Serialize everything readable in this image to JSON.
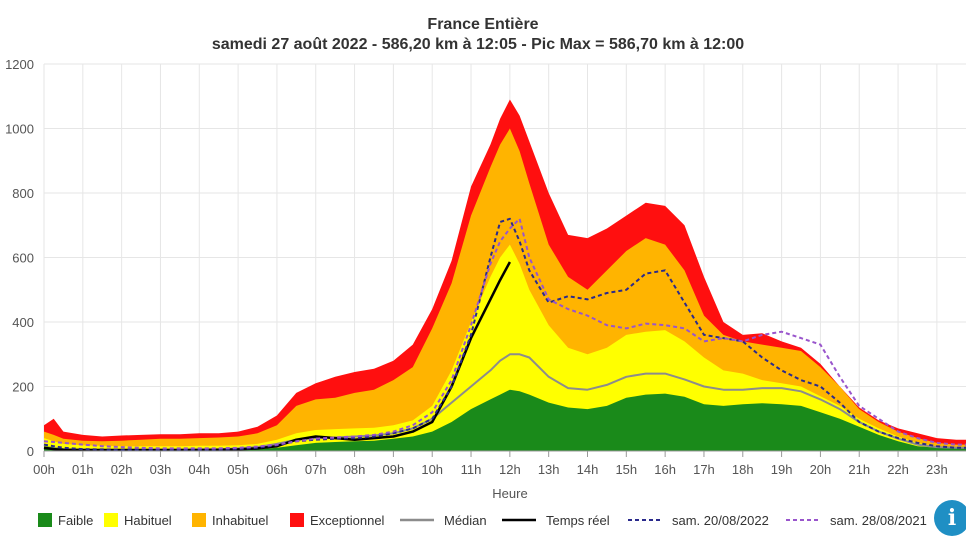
{
  "chart_data": {
    "type": "area",
    "title": "France Entière",
    "subtitle": "samedi 27 août 2022 - 586,20 km à 12:05 - Pic Max = 586,70 km à 12:00",
    "xlabel": "Heure",
    "ylabel": "",
    "xlim": [
      0,
      23.75
    ],
    "ylim": [
      0,
      1200
    ],
    "yticks": [
      0,
      200,
      400,
      600,
      800,
      1000,
      1200
    ],
    "xticks": [
      "00h",
      "01h",
      "02h",
      "03h",
      "04h",
      "05h",
      "06h",
      "07h",
      "08h",
      "09h",
      "10h",
      "11h",
      "12h",
      "13h",
      "14h",
      "15h",
      "16h",
      "17h",
      "18h",
      "19h",
      "20h",
      "21h",
      "22h",
      "23h"
    ],
    "x": [
      0,
      0.25,
      0.5,
      1,
      1.5,
      2,
      2.5,
      3,
      3.5,
      4,
      4.5,
      5,
      5.5,
      6,
      6.5,
      7,
      7.5,
      8,
      8.5,
      9,
      9.5,
      10,
      10.5,
      11,
      11.5,
      11.75,
      12,
      12.25,
      12.5,
      13,
      13.5,
      14,
      14.5,
      15,
      15.5,
      16,
      16.5,
      17,
      17.5,
      18,
      18.5,
      19,
      19.5,
      20,
      20.5,
      21,
      21.5,
      22,
      22.5,
      23,
      23.5,
      23.75
    ],
    "bands": [
      {
        "name": "Faible",
        "color": "#1a8a1a",
        "values": [
          15,
          12,
          8,
          5,
          4,
          3,
          3,
          3,
          3,
          3,
          3,
          3,
          5,
          10,
          18,
          25,
          28,
          30,
          32,
          38,
          45,
          60,
          90,
          130,
          160,
          175,
          190,
          185,
          175,
          150,
          135,
          130,
          140,
          165,
          175,
          178,
          168,
          145,
          140,
          145,
          148,
          145,
          140,
          120,
          100,
          75,
          50,
          30,
          15,
          10,
          8,
          8
        ]
      },
      {
        "name": "Habituel",
        "color": "#ffff00",
        "values": [
          40,
          30,
          22,
          18,
          16,
          15,
          15,
          15,
          15,
          16,
          16,
          18,
          22,
          35,
          55,
          65,
          68,
          70,
          72,
          80,
          95,
          140,
          250,
          400,
          540,
          600,
          640,
          580,
          500,
          390,
          320,
          300,
          320,
          360,
          370,
          375,
          340,
          290,
          250,
          240,
          220,
          210,
          200,
          170,
          140,
          100,
          70,
          45,
          25,
          15,
          12,
          12
        ]
      },
      {
        "name": "Inhabituel",
        "color": "#ffb400",
        "values": [
          60,
          50,
          38,
          32,
          30,
          32,
          35,
          38,
          38,
          40,
          42,
          45,
          55,
          80,
          140,
          160,
          165,
          180,
          190,
          220,
          260,
          380,
          520,
          730,
          880,
          950,
          1000,
          930,
          830,
          640,
          540,
          500,
          560,
          620,
          660,
          640,
          560,
          420,
          360,
          340,
          330,
          320,
          310,
          260,
          200,
          130,
          90,
          60,
          40,
          25,
          20,
          20
        ]
      },
      {
        "name": "Exceptionnel",
        "color": "#ff0f0f",
        "values": [
          80,
          100,
          60,
          50,
          45,
          48,
          50,
          52,
          52,
          55,
          55,
          60,
          75,
          110,
          180,
          210,
          230,
          245,
          255,
          280,
          330,
          440,
          590,
          820,
          950,
          1030,
          1090,
          1040,
          960,
          800,
          670,
          660,
          690,
          730,
          770,
          760,
          700,
          540,
          400,
          360,
          365,
          340,
          320,
          270,
          200,
          135,
          95,
          70,
          55,
          40,
          35,
          35
        ]
      }
    ],
    "series": [
      {
        "name": "Médian",
        "color": "#8c8c8c",
        "dash": "solid",
        "values": [
          10,
          8,
          5,
          4,
          3,
          3,
          3,
          4,
          4,
          5,
          5,
          8,
          12,
          22,
          35,
          40,
          42,
          45,
          48,
          55,
          70,
          100,
          150,
          200,
          250,
          280,
          300,
          300,
          290,
          230,
          195,
          190,
          205,
          230,
          240,
          240,
          222,
          200,
          190,
          190,
          195,
          195,
          185,
          160,
          130,
          90,
          60,
          38,
          20,
          12,
          10,
          10
        ]
      },
      {
        "name": "Temps réel",
        "color": "#000000",
        "dash": "solid",
        "values": [
          10,
          6,
          4,
          3,
          3,
          3,
          3,
          3,
          3,
          3,
          4,
          5,
          8,
          15,
          35,
          45,
          40,
          35,
          40,
          45,
          60,
          90,
          200,
          350,
          470,
          530,
          586,
          null,
          null,
          null,
          null,
          null,
          null,
          null,
          null,
          null,
          null,
          null,
          null,
          null,
          null,
          null,
          null,
          null,
          null,
          null,
          null,
          null,
          null,
          null,
          null,
          null
        ]
      },
      {
        "name": "sam. 20/08/2022",
        "color": "#2a2a8c",
        "dash": "dashed",
        "values": [
          20,
          15,
          10,
          6,
          5,
          4,
          4,
          4,
          4,
          4,
          5,
          6,
          10,
          18,
          30,
          35,
          38,
          40,
          45,
          55,
          70,
          100,
          200,
          360,
          600,
          710,
          720,
          650,
          560,
          460,
          480,
          470,
          490,
          500,
          550,
          560,
          460,
          360,
          350,
          340,
          290,
          250,
          220,
          200,
          150,
          90,
          60,
          40,
          25,
          15,
          10,
          10
        ]
      },
      {
        "name": "sam. 28/08/2021",
        "color": "#9955cc",
        "dash": "dashed",
        "values": [
          30,
          28,
          25,
          20,
          15,
          12,
          10,
          8,
          8,
          8,
          8,
          10,
          14,
          20,
          30,
          38,
          42,
          45,
          50,
          60,
          80,
          120,
          220,
          390,
          580,
          650,
          690,
          720,
          600,
          470,
          440,
          420,
          390,
          380,
          395,
          390,
          380,
          340,
          350,
          340,
          360,
          370,
          350,
          330,
          230,
          140,
          100,
          60,
          40,
          25,
          20,
          20
        ]
      }
    ],
    "legend": [
      {
        "label": "Faible",
        "kind": "box",
        "color": "#1a8a1a"
      },
      {
        "label": "Habituel",
        "kind": "box",
        "color": "#ffff00"
      },
      {
        "label": "Inhabituel",
        "kind": "box",
        "color": "#ffb400"
      },
      {
        "label": "Exceptionnel",
        "kind": "box",
        "color": "#ff0f0f"
      },
      {
        "label": "Médian",
        "kind": "line",
        "color": "#8c8c8c",
        "dash": "solid"
      },
      {
        "label": "Temps réel",
        "kind": "line",
        "color": "#000000",
        "dash": "solid"
      },
      {
        "label": "sam. 20/08/2022",
        "kind": "line",
        "color": "#2a2a8c",
        "dash": "dashed"
      },
      {
        "label": "sam. 28/08/2021",
        "kind": "line",
        "color": "#9955cc",
        "dash": "dashed"
      }
    ],
    "grid": true,
    "legend_position": "bottom"
  },
  "info_button": {
    "label": "i"
  }
}
